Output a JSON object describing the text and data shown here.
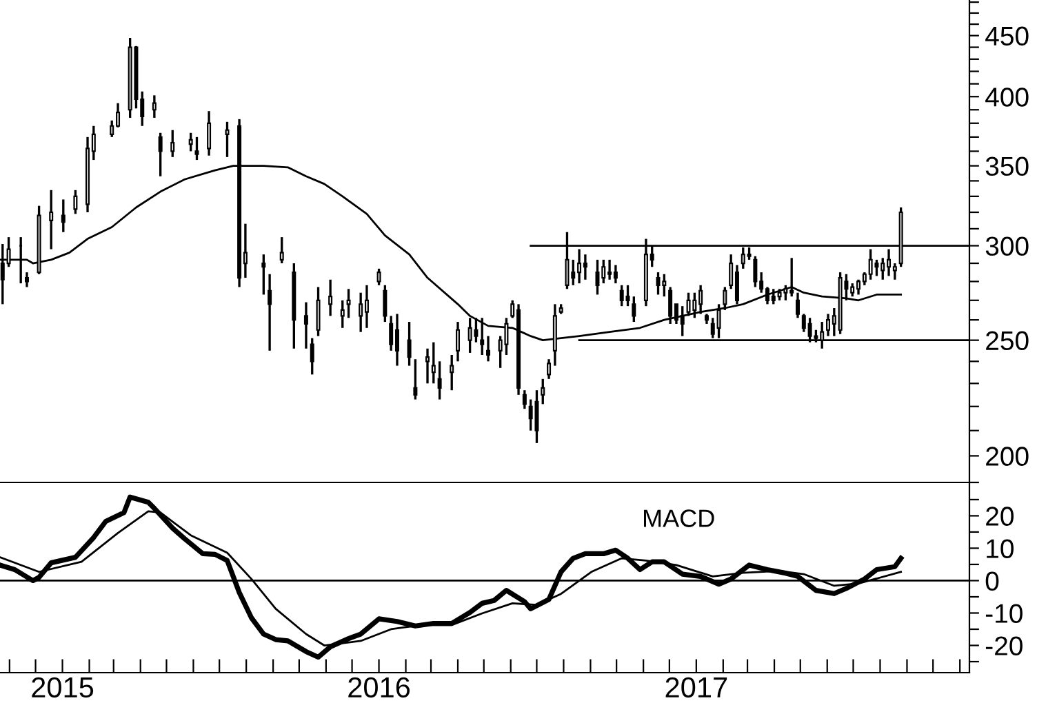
{
  "chart_data": [
    {
      "type": "candlestick",
      "xlim": [
        "2014-10-21",
        "2017-11-12"
      ],
      "ylim": [
        190,
        482
      ],
      "log": true,
      "tick_labels": "y",
      "yticks": [
        {
          "value": 190,
          "label": null
        },
        200,
        {
          "value": 210,
          "label": null
        },
        {
          "value": 220,
          "label": null
        },
        {
          "value": 230,
          "label": null
        },
        {
          "value": 240,
          "label": null
        },
        250,
        {
          "value": 260,
          "label": null
        },
        {
          "value": 270,
          "label": null
        },
        {
          "value": 280,
          "label": null
        },
        {
          "value": 290,
          "label": null
        },
        300,
        {
          "value": 310,
          "label": null
        },
        {
          "value": 320,
          "label": null
        },
        {
          "value": 330,
          "label": null
        },
        {
          "value": 340,
          "label": null
        },
        350,
        {
          "value": 360,
          "label": null
        },
        {
          "value": 370,
          "label": null
        },
        {
          "value": 380,
          "label": null
        },
        {
          "value": 390,
          "label": null
        },
        400,
        {
          "value": 410,
          "label": null
        },
        {
          "value": 420,
          "label": null
        },
        {
          "value": 430,
          "label": null
        },
        {
          "value": 440,
          "label": null
        },
        450,
        {
          "value": 460,
          "label": null
        },
        {
          "value": 470,
          "label": null
        },
        {
          "value": 480,
          "label": null
        }
      ],
      "color": "#000000",
      "x": [
        "2014-10-24",
        "2014-10-31",
        "2014-11-14",
        "2014-11-21",
        "2014-12-05",
        "2014-12-19",
        "2015-01-02",
        "2015-01-16",
        "2015-01-30",
        "2015-02-06",
        "2015-02-27",
        "2015-03-06",
        "2015-03-20",
        "2015-03-27",
        "2015-04-03",
        "2015-04-17",
        "2015-04-24",
        "2015-05-08",
        "2015-05-29",
        "2015-06-05",
        "2015-06-19",
        "2015-07-10",
        "2015-07-24",
        "2015-07-31",
        "2015-08-21",
        "2015-08-28",
        "2015-09-11",
        "2015-09-25",
        "2015-10-09",
        "2015-10-16",
        "2015-10-23",
        "2015-11-06",
        "2015-11-20",
        "2015-11-27",
        "2015-12-11",
        "2015-12-18",
        "2016-01-01",
        "2016-01-08",
        "2016-01-15",
        "2016-01-22",
        "2016-02-05",
        "2016-02-12",
        "2016-02-26",
        "2016-03-04",
        "2016-03-11",
        "2016-03-25",
        "2016-04-01",
        "2016-04-15",
        "2016-04-22",
        "2016-04-29",
        "2016-05-06",
        "2016-05-20",
        "2016-05-27",
        "2016-06-03",
        "2016-06-10",
        "2016-06-17",
        "2016-06-24",
        "2016-07-01",
        "2016-07-08",
        "2016-07-15",
        "2016-07-22",
        "2016-07-29",
        "2016-08-05",
        "2016-08-12",
        "2016-08-19",
        "2016-08-26",
        "2016-09-09",
        "2016-09-16",
        "2016-09-23",
        "2016-09-30",
        "2016-10-07",
        "2016-10-14",
        "2016-10-21",
        "2016-11-04",
        "2016-11-11",
        "2016-11-18",
        "2016-11-25",
        "2016-12-02",
        "2016-12-09",
        "2016-12-16",
        "2016-12-23",
        "2016-12-30",
        "2017-01-06",
        "2017-01-13",
        "2017-01-20",
        "2017-01-27",
        "2017-02-03",
        "2017-02-10",
        "2017-02-17",
        "2017-02-24",
        "2017-03-03",
        "2017-03-10",
        "2017-03-17",
        "2017-03-24",
        "2017-03-31",
        "2017-04-07",
        "2017-04-14",
        "2017-04-21",
        "2017-04-28",
        "2017-05-05",
        "2017-05-12",
        "2017-05-19",
        "2017-05-26",
        "2017-06-02",
        "2017-06-09",
        "2017-06-16",
        "2017-06-23",
        "2017-06-30",
        "2017-07-07",
        "2017-07-14",
        "2017-07-21",
        "2017-07-28",
        "2017-08-04",
        "2017-08-11",
        "2017-08-18",
        "2017-08-25"
      ],
      "ohlc": [
        [
          290,
          301,
          268,
          281
        ],
        [
          290,
          305,
          288,
          298
        ],
        [
          300,
          305,
          279,
          300
        ],
        [
          282,
          285,
          277,
          280
        ],
        [
          285,
          324,
          284,
          318
        ],
        [
          315,
          334,
          298,
          320
        ],
        [
          318,
          328,
          308,
          314
        ],
        [
          322,
          334,
          319,
          330
        ],
        [
          325,
          370,
          320,
          362
        ],
        [
          360,
          378,
          354,
          372
        ],
        [
          372,
          382,
          370,
          378
        ],
        [
          378,
          395,
          377,
          388
        ],
        [
          390,
          448,
          384,
          440
        ],
        [
          440,
          441,
          391,
          398
        ],
        [
          398,
          404,
          378,
          385
        ],
        [
          390,
          401,
          384,
          395
        ],
        [
          370,
          373,
          343,
          360
        ],
        [
          360,
          375,
          356,
          366
        ],
        [
          365,
          373,
          360,
          368
        ],
        [
          360,
          370,
          354,
          358
        ],
        [
          362,
          389,
          357,
          380
        ],
        [
          372,
          381,
          356,
          375
        ],
        [
          378,
          383,
          277,
          282
        ],
        [
          290,
          313,
          282,
          296
        ],
        [
          290,
          295,
          273,
          288
        ],
        [
          275,
          284,
          245,
          268
        ],
        [
          292,
          305,
          290,
          296
        ],
        [
          285,
          290,
          246,
          260
        ],
        [
          262,
          269,
          246,
          258
        ],
        [
          248,
          251,
          234,
          240
        ],
        [
          255,
          277,
          252,
          270
        ],
        [
          268,
          281,
          262,
          272
        ],
        [
          262,
          270,
          256,
          265
        ],
        [
          268,
          276,
          261,
          270
        ],
        [
          262,
          274,
          254,
          268
        ],
        [
          264,
          278,
          256,
          270
        ],
        [
          280,
          287,
          278,
          285
        ],
        [
          275,
          278,
          259,
          262
        ],
        [
          258,
          262,
          245,
          248
        ],
        [
          255,
          263,
          238,
          245
        ],
        [
          250,
          259,
          238,
          242
        ],
        [
          228,
          241,
          223,
          225
        ],
        [
          240,
          246,
          230,
          242
        ],
        [
          235,
          249,
          230,
          238
        ],
        [
          232,
          240,
          223,
          228
        ],
        [
          235,
          243,
          227,
          238
        ],
        [
          245,
          259,
          240,
          255
        ],
        [
          250,
          261,
          244,
          256
        ],
        [
          255,
          261,
          249,
          252
        ],
        [
          250,
          261,
          243,
          248
        ],
        [
          245,
          252,
          240,
          243
        ],
        [
          245,
          252,
          237,
          250
        ],
        [
          248,
          261,
          243,
          258
        ],
        [
          262,
          270,
          261,
          268
        ],
        [
          265,
          268,
          225,
          228
        ],
        [
          225,
          227,
          219,
          221
        ],
        [
          220,
          223,
          210,
          215
        ],
        [
          222,
          227,
          205,
          210
        ],
        [
          225,
          232,
          221,
          228
        ],
        [
          234,
          241,
          232,
          239
        ],
        [
          245,
          268,
          238,
          262
        ],
        [
          264,
          268,
          263,
          266
        ],
        [
          278,
          308,
          276,
          292
        ],
        [
          285,
          292,
          278,
          282
        ],
        [
          285,
          298,
          279,
          290
        ],
        [
          290,
          295,
          281,
          288
        ],
        [
          285,
          292,
          273,
          278
        ],
        [
          282,
          292,
          279,
          288
        ],
        [
          285,
          292,
          281,
          284
        ],
        [
          285,
          289,
          279,
          282
        ],
        [
          275,
          278,
          267,
          270
        ],
        [
          272,
          278,
          267,
          270
        ],
        [
          268,
          272,
          259,
          262
        ],
        [
          270,
          304,
          267,
          295
        ],
        [
          295,
          300,
          288,
          292
        ],
        [
          282,
          285,
          273,
          278
        ],
        [
          278,
          284,
          272,
          280
        ],
        [
          275,
          277,
          258,
          262
        ],
        [
          268,
          268,
          258,
          260
        ],
        [
          262,
          267,
          252,
          258
        ],
        [
          264,
          274,
          262,
          270
        ],
        [
          265,
          274,
          261,
          270
        ],
        [
          268,
          278,
          263,
          275
        ],
        [
          262,
          263,
          258,
          260
        ],
        [
          258,
          261,
          251,
          253
        ],
        [
          256,
          268,
          251,
          265
        ],
        [
          268,
          277,
          265,
          275
        ],
        [
          278,
          295,
          276,
          290
        ],
        [
          285,
          289,
          268,
          270
        ],
        [
          290,
          299,
          287,
          295
        ],
        [
          295,
          299,
          292,
          294
        ],
        [
          292,
          294,
          277,
          280
        ],
        [
          280,
          285,
          274,
          276
        ],
        [
          276,
          277,
          268,
          270
        ],
        [
          272,
          276,
          268,
          270
        ],
        [
          272,
          276,
          270,
          274
        ],
        [
          274,
          278,
          270,
          276
        ],
        [
          275,
          293,
          272,
          274
        ],
        [
          270,
          274,
          261,
          263
        ],
        [
          262,
          263,
          254,
          256
        ],
        [
          258,
          261,
          249,
          252
        ],
        [
          252,
          255,
          249,
          251
        ],
        [
          250,
          259,
          246,
          254
        ],
        [
          255,
          263,
          252,
          260
        ],
        [
          258,
          266,
          252,
          262
        ],
        [
          255,
          285,
          253,
          282
        ],
        [
          280,
          284,
          270,
          276
        ],
        [
          274,
          279,
          272,
          277
        ],
        [
          276,
          281,
          273,
          280
        ],
        [
          280,
          285,
          278,
          284
        ],
        [
          284,
          298,
          281,
          292
        ],
        [
          290,
          292,
          283,
          288
        ],
        [
          286,
          293,
          281,
          290
        ],
        [
          288,
          298,
          283,
          292
        ],
        [
          286,
          290,
          281,
          288
        ],
        [
          290,
          323,
          288,
          320
        ]
      ],
      "series": [
        {
          "type": "line",
          "color": "#000000",
          "x": [
            "2014-10-21",
            "2014-11-21",
            "2014-11-28",
            "2014-12-19",
            "2015-01-09",
            "2015-01-30",
            "2015-02-27",
            "2015-03-27",
            "2015-04-24",
            "2015-05-22",
            "2015-06-26",
            "2015-07-17",
            "2015-08-21",
            "2015-09-18",
            "2015-10-09",
            "2015-10-30",
            "2015-11-20",
            "2015-12-18",
            "2016-01-08",
            "2016-02-05",
            "2016-02-26",
            "2016-04-01",
            "2016-04-15",
            "2016-05-06",
            "2016-06-03",
            "2016-06-24",
            "2016-07-08",
            "2016-07-29",
            "2016-08-19",
            "2016-09-23",
            "2016-10-28",
            "2016-11-25",
            "2016-12-16",
            "2017-01-06",
            "2017-02-03",
            "2017-02-24",
            "2017-03-24",
            "2017-04-07",
            "2017-04-21",
            "2017-05-05",
            "2017-05-26",
            "2017-06-23",
            "2017-07-07",
            "2017-07-28",
            "2017-08-11",
            "2017-08-25"
          ],
          "values": [
            292,
            292,
            290,
            292,
            296,
            304,
            311,
            323,
            333,
            341,
            347,
            350,
            350,
            349,
            343,
            338,
            330,
            319,
            306,
            295,
            282,
            268,
            262,
            257,
            256,
            252,
            250,
            251,
            252,
            254,
            256,
            260,
            262,
            264,
            266,
            268,
            273,
            275,
            277,
            274,
            272,
            271,
            270,
            273,
            273,
            273
          ]
        },
        {
          "type": "line",
          "color": "#000000",
          "x": [
            "2016-06-24",
            "2017-11-12"
          ],
          "values": [
            300,
            300
          ]
        },
        {
          "type": "line",
          "color": "#000000",
          "x": [
            "2016-08-19",
            "2017-11-12"
          ],
          "values": [
            250,
            250
          ]
        }
      ]
    },
    {
      "type": "line",
      "xlim": [
        "2014-10-21",
        "2017-11-12"
      ],
      "ylim": [
        -28.4,
        30.3
      ],
      "yticks": [
        {
          "value": -25,
          "label": null
        },
        {
          "value": -20,
          "label": "-20"
        },
        {
          "value": -15,
          "label": null
        },
        {
          "value": -10,
          "label": "-10"
        },
        {
          "value": -5,
          "label": null
        },
        0,
        {
          "value": 5,
          "label": null
        },
        10,
        {
          "value": 15,
          "label": null
        },
        20,
        {
          "value": 25,
          "label": null
        }
      ],
      "xticks": [
        {
          "value": "2014-11-01",
          "label": null
        },
        {
          "value": "2014-12-01",
          "label": null
        },
        {
          "value": "2015-01-01",
          "label": "2015"
        },
        {
          "value": "2015-02-01",
          "label": null
        },
        {
          "value": "2015-03-01",
          "label": null
        },
        {
          "value": "2015-04-01",
          "label": null
        },
        {
          "value": "2015-05-01",
          "label": null
        },
        {
          "value": "2015-06-01",
          "label": null
        },
        {
          "value": "2015-07-01",
          "label": null
        },
        {
          "value": "2015-08-01",
          "label": null
        },
        {
          "value": "2015-09-01",
          "label": null
        },
        {
          "value": "2015-10-01",
          "label": null
        },
        {
          "value": "2015-11-01",
          "label": null
        },
        {
          "value": "2015-12-01",
          "label": null
        },
        {
          "value": "2016-01-01",
          "label": "2016"
        },
        {
          "value": "2016-02-01",
          "label": null
        },
        {
          "value": "2016-03-01",
          "label": null
        },
        {
          "value": "2016-04-01",
          "label": null
        },
        {
          "value": "2016-05-01",
          "label": null
        },
        {
          "value": "2016-06-01",
          "label": null
        },
        {
          "value": "2016-07-01",
          "label": null
        },
        {
          "value": "2016-08-01",
          "label": null
        },
        {
          "value": "2016-09-01",
          "label": null
        },
        {
          "value": "2016-10-01",
          "label": null
        },
        {
          "value": "2016-11-01",
          "label": null
        },
        {
          "value": "2016-12-01",
          "label": null
        },
        {
          "value": "2017-01-01",
          "label": "2017"
        },
        {
          "value": "2017-02-01",
          "label": null
        },
        {
          "value": "2017-03-01",
          "label": null
        },
        {
          "value": "2017-04-01",
          "label": null
        },
        {
          "value": "2017-05-01",
          "label": null
        },
        {
          "value": "2017-06-01",
          "label": null
        },
        {
          "value": "2017-07-01",
          "label": null
        },
        {
          "value": "2017-08-01",
          "label": null
        },
        {
          "value": "2017-09-01",
          "label": null
        },
        {
          "value": "2017-10-01",
          "label": null
        },
        {
          "value": "2017-11-01",
          "label": null
        }
      ],
      "annotations": [
        "MACD"
      ],
      "ref_lines": [
        {
          "axis": "y",
          "value": 0,
          "color": "#000000"
        }
      ],
      "series": [
        {
          "color": "#000000",
          "x": [
            "2014-10-21",
            "2014-11-07",
            "2014-11-28",
            "2014-12-05",
            "2014-12-19",
            "2015-01-16",
            "2015-02-06",
            "2015-02-20",
            "2015-03-13",
            "2015-03-20",
            "2015-04-10",
            "2015-04-17",
            "2015-05-08",
            "2015-05-22",
            "2015-06-12",
            "2015-06-26",
            "2015-07-10",
            "2015-07-24",
            "2015-08-07",
            "2015-08-21",
            "2015-09-04",
            "2015-09-18",
            "2015-10-09",
            "2015-10-23",
            "2015-11-06",
            "2015-11-27",
            "2015-12-11",
            "2016-01-01",
            "2016-01-22",
            "2016-02-12",
            "2016-03-04",
            "2016-03-25",
            "2016-04-15",
            "2016-04-29",
            "2016-05-13",
            "2016-05-27",
            "2016-06-17",
            "2016-06-24",
            "2016-07-15",
            "2016-07-29",
            "2016-08-12",
            "2016-08-26",
            "2016-09-16",
            "2016-09-30",
            "2016-10-14",
            "2016-10-28",
            "2016-11-11",
            "2016-11-25",
            "2016-12-16",
            "2017-01-06",
            "2017-01-27",
            "2017-02-10",
            "2017-03-03",
            "2017-03-24",
            "2017-04-14",
            "2017-04-28",
            "2017-05-19",
            "2017-06-09",
            "2017-06-23",
            "2017-07-14",
            "2017-07-28",
            "2017-08-18",
            "2017-08-25"
          ],
          "values": [
            4.8,
            3.4,
            0,
            1,
            5.5,
            7.2,
            13.3,
            18.3,
            21,
            25.8,
            24.2,
            22.3,
            16.2,
            12.9,
            8.3,
            8.1,
            6.2,
            -3.7,
            -11.5,
            -16.5,
            -18.2,
            -18.6,
            -21.9,
            -23.6,
            -20.4,
            -17.9,
            -16.5,
            -11.8,
            -12.6,
            -14,
            -13.2,
            -13.2,
            -9.8,
            -7,
            -6.1,
            -3,
            -6.5,
            -8.7,
            -5.8,
            2.7,
            6.9,
            8.3,
            8.3,
            9.4,
            6.9,
            3.4,
            5.8,
            5.8,
            2,
            1.3,
            -1.1,
            0.5,
            4.8,
            3.4,
            2.3,
            1.3,
            -3,
            -4,
            -2.4,
            0.5,
            3.4,
            4.3,
            6.9
          ]
        },
        {
          "color": "#000000",
          "x": [
            "2014-10-21",
            "2014-12-05",
            "2015-01-23",
            "2015-03-06",
            "2015-04-10",
            "2015-04-24",
            "2015-05-29",
            "2015-07-10",
            "2015-08-07",
            "2015-09-04",
            "2015-10-09",
            "2015-10-30",
            "2015-12-11",
            "2016-01-15",
            "2016-02-19",
            "2016-03-25",
            "2016-04-29",
            "2016-06-03",
            "2016-07-01",
            "2016-07-29",
            "2016-09-02",
            "2016-10-07",
            "2016-11-04",
            "2016-12-09",
            "2017-01-20",
            "2017-02-24",
            "2017-04-07",
            "2017-05-05",
            "2017-06-09",
            "2017-07-07",
            "2017-08-25"
          ],
          "values": [
            7.2,
            2.7,
            5.8,
            14.7,
            21.4,
            21,
            14,
            8.6,
            0.5,
            -8.7,
            -16.5,
            -20,
            -18.6,
            -15,
            -13.7,
            -13.7,
            -10.1,
            -7,
            -7.5,
            -4.1,
            2.7,
            6.9,
            6.2,
            4.8,
            1.3,
            2.4,
            3,
            2,
            -1.6,
            -0.9,
            2.7
          ]
        }
      ]
    }
  ]
}
